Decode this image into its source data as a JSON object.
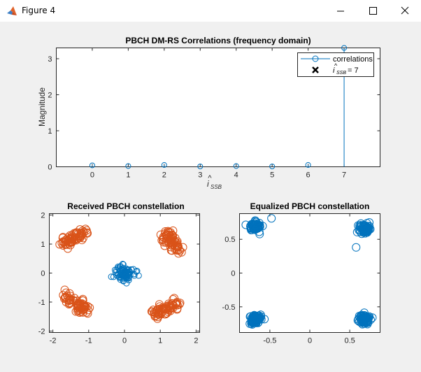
{
  "window": {
    "title": "Figure 4",
    "icon": "matlab-icon",
    "controls": [
      "minimize-icon",
      "maximize-icon",
      "close-icon"
    ]
  },
  "chart_data": [
    {
      "type": "stem",
      "title": "PBCH DM-RS Correlations (frequency domain)",
      "xlabel": "i_SSB",
      "xlabel_hat": true,
      "ylabel": "Magnitude",
      "xlim": [
        -1,
        8
      ],
      "ylim": [
        0,
        3.3
      ],
      "xticks": [
        0,
        1,
        2,
        3,
        4,
        5,
        6,
        7
      ],
      "yticks": [
        0,
        1,
        2,
        3
      ],
      "grid": false,
      "series": [
        {
          "name": "correlations",
          "color": "#0072BD",
          "marker": "circle",
          "x": [
            0,
            1,
            2,
            3,
            4,
            5,
            6,
            7
          ],
          "y": [
            0.04,
            0.02,
            0.05,
            0.01,
            0.02,
            0.01,
            0.05,
            3.3
          ]
        }
      ],
      "estimate_marker": {
        "x": 7,
        "color": "#000000",
        "marker": "x"
      },
      "legend": {
        "placement": "top-right",
        "entries": [
          {
            "label": "correlations",
            "marker": "circle-line",
            "color": "#0072BD"
          },
          {
            "label_main": "i",
            "label_sub": "SSB",
            "label_value": " = 7",
            "hat": true,
            "marker": "x",
            "color": "#000000"
          }
        ]
      }
    },
    {
      "type": "scatter",
      "title": "Received PBCH constellation",
      "xlim": [
        -2.1,
        2.1
      ],
      "ylim": [
        -2.05,
        2.05
      ],
      "xticks": [
        -2,
        -1,
        0,
        1,
        2
      ],
      "yticks": [
        -2,
        -1,
        0,
        1,
        2
      ],
      "grid": false,
      "series": [
        {
          "name": "",
          "color": "#0072BD",
          "marker": "circle",
          "size": 4,
          "clusters": [
            {
              "x": 0,
              "y": 0,
              "spread": 0.14,
              "count": 90
            }
          ]
        },
        {
          "name": "",
          "color": "#D95319",
          "marker": "circle",
          "size": 5.5,
          "clusters": [
            {
              "x": -1.4,
              "y": 1.2,
              "dx": 0.6,
              "dy": 0.4,
              "spread": 0.09,
              "count": 70
            },
            {
              "x": 1.3,
              "y": 1.1,
              "dx": 0.35,
              "dy": -0.6,
              "spread": 0.09,
              "count": 70
            },
            {
              "x": -1.35,
              "y": -1.05,
              "dx": 0.55,
              "dy": -0.45,
              "spread": 0.09,
              "count": 70
            },
            {
              "x": 1.15,
              "y": -1.25,
              "dx": 0.65,
              "dy": 0.4,
              "spread": 0.09,
              "count": 70
            }
          ]
        }
      ]
    },
    {
      "type": "scatter",
      "title": "Equalized PBCH constellation",
      "xlim": [
        -0.88,
        0.88
      ],
      "ylim": [
        -0.88,
        0.88
      ],
      "xticks": [
        -0.5,
        0,
        0.5
      ],
      "yticks": [
        -0.5,
        0,
        0.5
      ],
      "grid": false,
      "series": [
        {
          "name": "",
          "color": "#0072BD",
          "marker": "circle",
          "size": 5.5,
          "clusters": [
            {
              "x": -0.68,
              "y": 0.69,
              "spread": 0.035,
              "count": 70
            },
            {
              "x": 0.68,
              "y": 0.66,
              "spread": 0.035,
              "count": 70
            },
            {
              "x": -0.68,
              "y": -0.68,
              "spread": 0.035,
              "count": 80
            },
            {
              "x": 0.68,
              "y": -0.69,
              "spread": 0.035,
              "count": 70
            }
          ],
          "outliers": [
            {
              "x": -0.48,
              "y": 0.81
            },
            {
              "x": 0.58,
              "y": 0.38
            }
          ]
        }
      ]
    }
  ]
}
